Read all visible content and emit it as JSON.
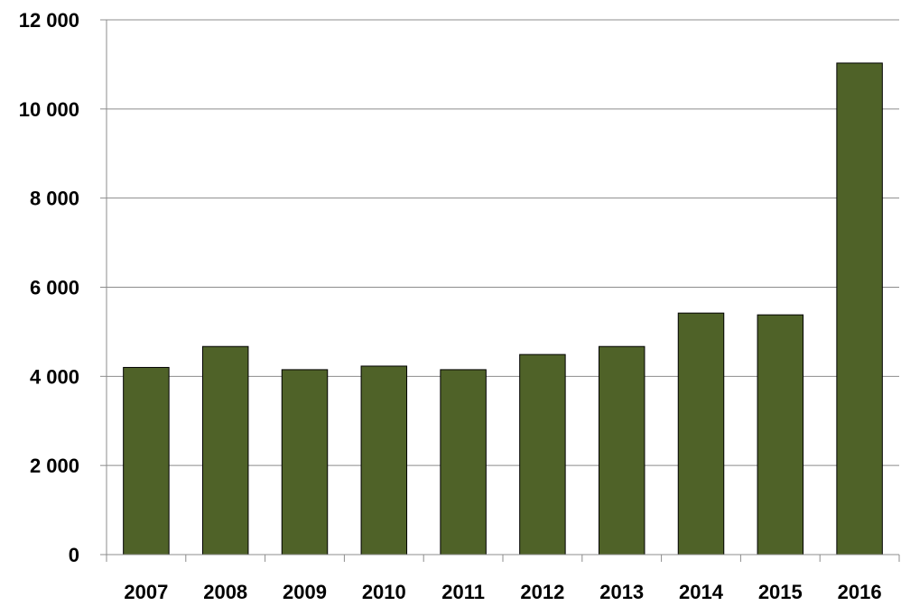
{
  "chart_data": {
    "type": "bar",
    "categories": [
      "2007",
      "2008",
      "2009",
      "2010",
      "2011",
      "2012",
      "2013",
      "2014",
      "2015",
      "2016"
    ],
    "values": [
      4200,
      4670,
      4150,
      4230,
      4150,
      4490,
      4670,
      5420,
      5380,
      11030
    ],
    "ylim": [
      0,
      12000
    ],
    "yticks": [
      0,
      2000,
      4000,
      6000,
      8000,
      10000,
      12000
    ],
    "ytick_labels": [
      "0",
      "2 000",
      "4 000",
      "6 000",
      "8 000",
      "10 000",
      "12 000"
    ],
    "grid": true,
    "bar_color": "#4f6228",
    "title": "",
    "xlabel": "",
    "ylabel": ""
  }
}
